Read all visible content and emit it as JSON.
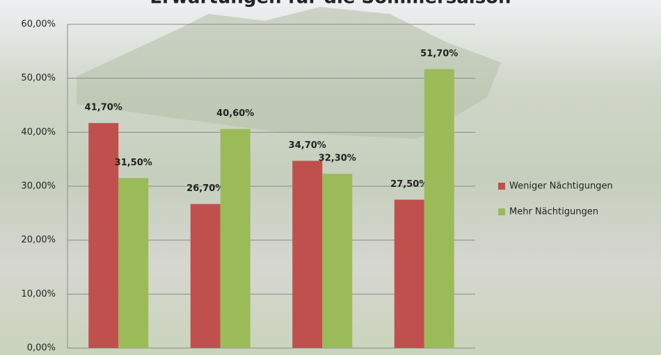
{
  "chart_data": {
    "type": "bar",
    "title": "Erwartungen für die Sommersaison",
    "categories": [
      null,
      null,
      null,
      null
    ],
    "series": [
      {
        "name": "Weniger Nächtigungen",
        "color": "#c0504d",
        "label_color": "#c0262a",
        "values": [
          41.7,
          26.7,
          34.7,
          27.5
        ],
        "value_labels": [
          "41,70%",
          "26,70%",
          "34,70%",
          "27,50%"
        ]
      },
      {
        "name": "Mehr Nächtigungen",
        "color": "#9bbb59",
        "label_color": "#77a03a",
        "values": [
          31.5,
          40.6,
          32.3,
          51.7
        ],
        "value_labels": [
          "31,50%",
          "40,60%",
          "32,30%",
          "51,70%"
        ]
      }
    ],
    "ylim": [
      0,
      60
    ],
    "yticks": [
      {
        "value": 0,
        "label": "0,00%"
      },
      {
        "value": 10,
        "label": "10,00%"
      },
      {
        "value": 20,
        "label": "20,00%"
      },
      {
        "value": 30,
        "label": "30,00%"
      },
      {
        "value": 40,
        "label": "40,00%"
      },
      {
        "value": 50,
        "label": "50,00%"
      },
      {
        "value": 60,
        "label": "60,00%"
      }
    ],
    "grid": true,
    "legend": "right"
  }
}
